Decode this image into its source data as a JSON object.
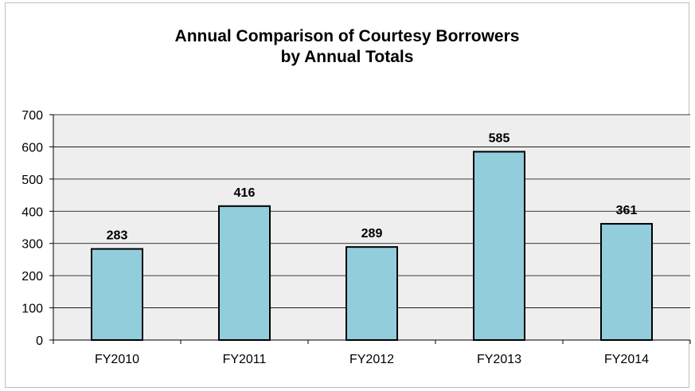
{
  "chart_data": {
    "type": "bar",
    "title_line1": "Annual Comparison of Courtesy Borrowers",
    "title_line2": "by Annual Totals",
    "categories": [
      "FY2010",
      "FY2011",
      "FY2012",
      "FY2013",
      "FY2014"
    ],
    "values": [
      283,
      416,
      289,
      585,
      361
    ],
    "data_labels": [
      "283",
      "416",
      "289",
      "585",
      "361"
    ],
    "y_ticks": [
      0,
      100,
      200,
      300,
      400,
      500,
      600,
      700
    ],
    "ylim": [
      0,
      700
    ],
    "grid": true,
    "legend": "none",
    "colors": {
      "bar_fill": "#92cddc",
      "bar_stroke": "#000000",
      "plot_background": "#eeeeee",
      "gridline": "#000000"
    }
  }
}
